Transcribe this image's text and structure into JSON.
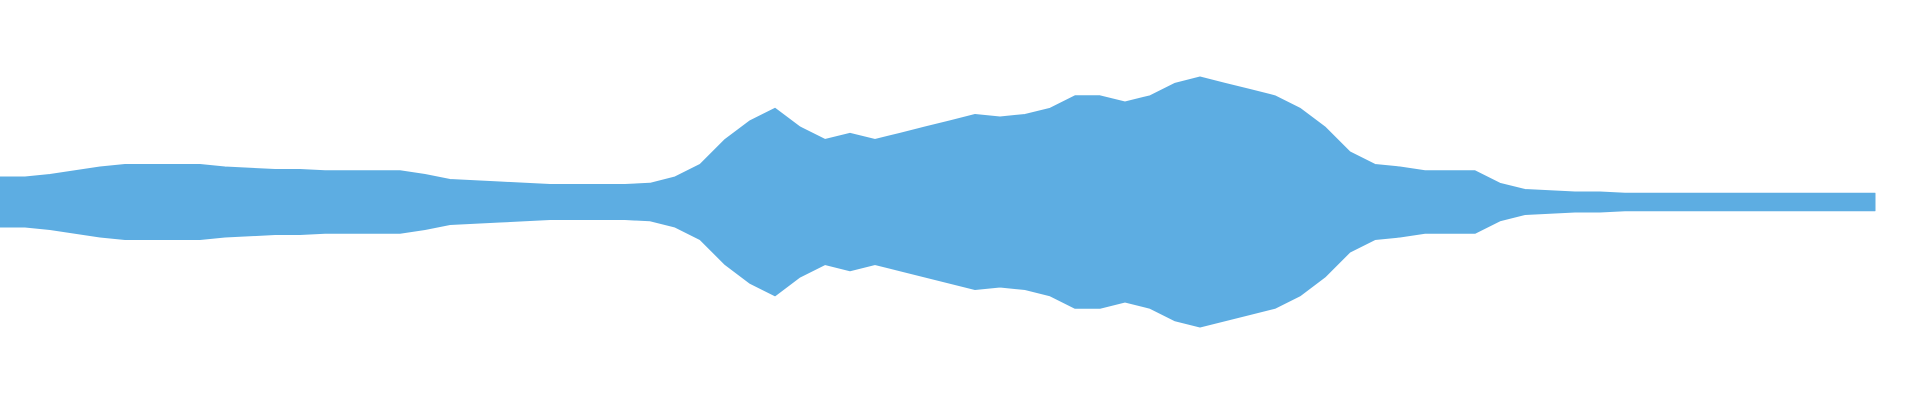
{
  "chart_data": {
    "type": "waveform",
    "color": "#5dade2",
    "values": [
      20,
      20,
      22,
      25,
      28,
      30,
      30,
      30,
      30,
      28,
      27,
      26,
      26,
      25,
      25,
      25,
      25,
      22,
      18,
      17,
      16,
      15,
      14,
      14,
      14,
      14,
      15,
      20,
      30,
      50,
      65,
      75,
      60,
      50,
      55,
      50,
      55,
      60,
      65,
      70,
      68,
      70,
      75,
      85,
      85,
      80,
      85,
      95,
      100,
      95,
      90,
      85,
      75,
      60,
      40,
      30,
      28,
      25,
      25,
      25,
      15,
      10,
      9,
      8,
      8,
      7,
      7,
      7,
      7,
      7,
      7,
      7,
      7,
      7,
      7,
      7
    ]
  }
}
